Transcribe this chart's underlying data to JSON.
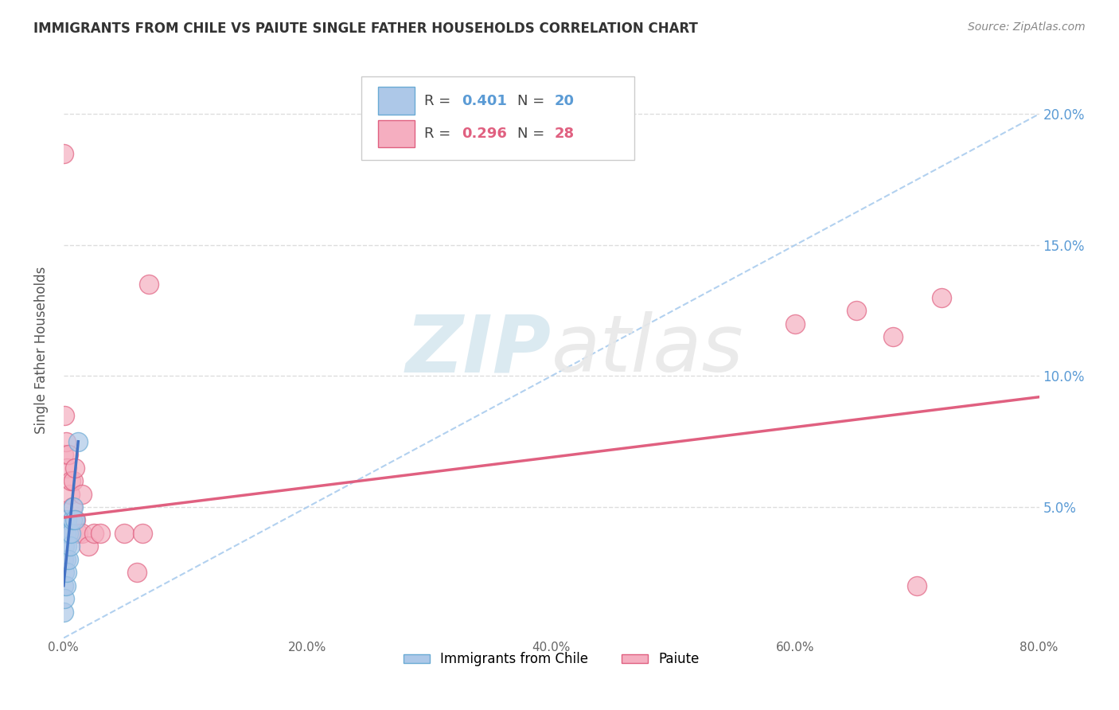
{
  "title": "IMMIGRANTS FROM CHILE VS PAIUTE SINGLE FATHER HOUSEHOLDS CORRELATION CHART",
  "source_text": "Source: ZipAtlas.com",
  "ylabel": "Single Father Households",
  "xlim": [
    0.0,
    0.8
  ],
  "ylim": [
    0.0,
    0.22
  ],
  "xtick_vals": [
    0.0,
    0.2,
    0.4,
    0.6,
    0.8
  ],
  "xtick_labels": [
    "0.0%",
    "20.0%",
    "40.0%",
    "60.0%",
    "80.0%"
  ],
  "ytick_vals": [
    0.05,
    0.1,
    0.15,
    0.2
  ],
  "ytick_labels": [
    "5.0%",
    "10.0%",
    "15.0%",
    "20.0%"
  ],
  "chile_color": "#adc8e8",
  "chile_color_edge": "#6aaad4",
  "paiute_color": "#f5aec0",
  "paiute_color_edge": "#e06080",
  "chile_R": 0.401,
  "chile_N": 20,
  "paiute_R": 0.296,
  "paiute_N": 28,
  "chile_scatter_x": [
    0.0,
    0.0,
    0.0,
    0.001,
    0.001,
    0.001,
    0.002,
    0.002,
    0.002,
    0.003,
    0.003,
    0.003,
    0.004,
    0.004,
    0.005,
    0.006,
    0.007,
    0.008,
    0.009,
    0.012
  ],
  "chile_scatter_y": [
    0.01,
    0.02,
    0.03,
    0.015,
    0.025,
    0.035,
    0.02,
    0.03,
    0.04,
    0.025,
    0.035,
    0.045,
    0.03,
    0.04,
    0.035,
    0.04,
    0.045,
    0.05,
    0.045,
    0.075
  ],
  "paiute_scatter_x": [
    0.0,
    0.0,
    0.0,
    0.001,
    0.002,
    0.003,
    0.004,
    0.005,
    0.006,
    0.007,
    0.008,
    0.009,
    0.01,
    0.012,
    0.015,
    0.015,
    0.02,
    0.025,
    0.03,
    0.05,
    0.06,
    0.065,
    0.07,
    0.6,
    0.65,
    0.68,
    0.7,
    0.72
  ],
  "paiute_scatter_y": [
    0.185,
    0.07,
    0.04,
    0.085,
    0.075,
    0.065,
    0.07,
    0.055,
    0.06,
    0.05,
    0.06,
    0.065,
    0.045,
    0.04,
    0.04,
    0.055,
    0.035,
    0.04,
    0.04,
    0.04,
    0.025,
    0.04,
    0.135,
    0.12,
    0.125,
    0.115,
    0.02,
    0.13
  ],
  "chile_trend_x": [
    0.0,
    0.012
  ],
  "chile_trend_y": [
    0.02,
    0.075
  ],
  "paiute_trend_x": [
    0.0,
    0.8
  ],
  "paiute_trend_y": [
    0.046,
    0.092
  ],
  "dashed_trend_x": [
    0.0,
    0.8
  ],
  "dashed_trend_y": [
    0.0,
    0.2
  ],
  "background_color": "#ffffff",
  "grid_color": "#dddddd",
  "dashed_color": "#aaccee",
  "watermark_zip": "ZIP",
  "watermark_atlas": "atlas"
}
